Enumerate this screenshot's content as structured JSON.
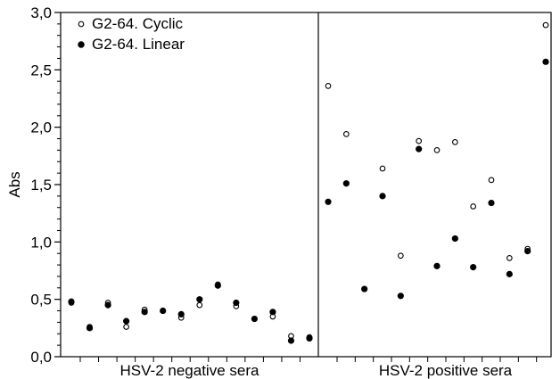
{
  "chart_data": {
    "type": "scatter",
    "ylabel": "Abs",
    "ylim": [
      0,
      3.0
    ],
    "y_ticks": [
      "0,0",
      "0,5",
      "1,0",
      "1,5",
      "2,0",
      "2,5",
      "3,0"
    ],
    "groups": [
      "HSV-2 negative sera",
      "HSV-2 positive sera"
    ],
    "legend_position": "top-left",
    "grid": false,
    "series": [
      {
        "name": "G2-64. Cyclic",
        "marker": "open-circle",
        "points": [
          {
            "x": 1,
            "y": 0.47
          },
          {
            "x": 2,
            "y": 0.26
          },
          {
            "x": 3,
            "y": 0.47
          },
          {
            "x": 4,
            "y": 0.26
          },
          {
            "x": 5,
            "y": 0.41
          },
          {
            "x": 6,
            "y": 0.4
          },
          {
            "x": 7,
            "y": 0.34
          },
          {
            "x": 8,
            "y": 0.45
          },
          {
            "x": 9,
            "y": 0.63
          },
          {
            "x": 10,
            "y": 0.44
          },
          {
            "x": 11,
            "y": 0.33
          },
          {
            "x": 12,
            "y": 0.35
          },
          {
            "x": 13,
            "y": 0.18
          },
          {
            "x": 14,
            "y": 0.17
          },
          {
            "x": 15,
            "y": 2.36
          },
          {
            "x": 16,
            "y": 1.94
          },
          {
            "x": 17,
            "y": 0.59
          },
          {
            "x": 18,
            "y": 1.64
          },
          {
            "x": 19,
            "y": 0.88
          },
          {
            "x": 20,
            "y": 1.88
          },
          {
            "x": 21,
            "y": 1.8
          },
          {
            "x": 22,
            "y": 1.87
          },
          {
            "x": 23,
            "y": 1.31
          },
          {
            "x": 24,
            "y": 1.54
          },
          {
            "x": 25,
            "y": 0.86
          },
          {
            "x": 26,
            "y": 0.94
          },
          {
            "x": 27,
            "y": 2.89
          }
        ]
      },
      {
        "name": "G2-64. Linear",
        "marker": "filled-circle",
        "points": [
          {
            "x": 1,
            "y": 0.48
          },
          {
            "x": 2,
            "y": 0.25
          },
          {
            "x": 3,
            "y": 0.45
          },
          {
            "x": 4,
            "y": 0.31
          },
          {
            "x": 5,
            "y": 0.39
          },
          {
            "x": 6,
            "y": 0.4
          },
          {
            "x": 7,
            "y": 0.37
          },
          {
            "x": 8,
            "y": 0.5
          },
          {
            "x": 9,
            "y": 0.62
          },
          {
            "x": 10,
            "y": 0.47
          },
          {
            "x": 11,
            "y": 0.33
          },
          {
            "x": 12,
            "y": 0.39
          },
          {
            "x": 13,
            "y": 0.14
          },
          {
            "x": 14,
            "y": 0.16
          },
          {
            "x": 15,
            "y": 1.35
          },
          {
            "x": 16,
            "y": 1.51
          },
          {
            "x": 17,
            "y": 0.59
          },
          {
            "x": 18,
            "y": 1.4
          },
          {
            "x": 19,
            "y": 0.53
          },
          {
            "x": 20,
            "y": 1.81
          },
          {
            "x": 21,
            "y": 0.79
          },
          {
            "x": 22,
            "y": 1.03
          },
          {
            "x": 23,
            "y": 0.78
          },
          {
            "x": 24,
            "y": 1.34
          },
          {
            "x": 25,
            "y": 0.72
          },
          {
            "x": 26,
            "y": 0.92
          },
          {
            "x": 27,
            "y": 2.57
          }
        ]
      }
    ]
  }
}
